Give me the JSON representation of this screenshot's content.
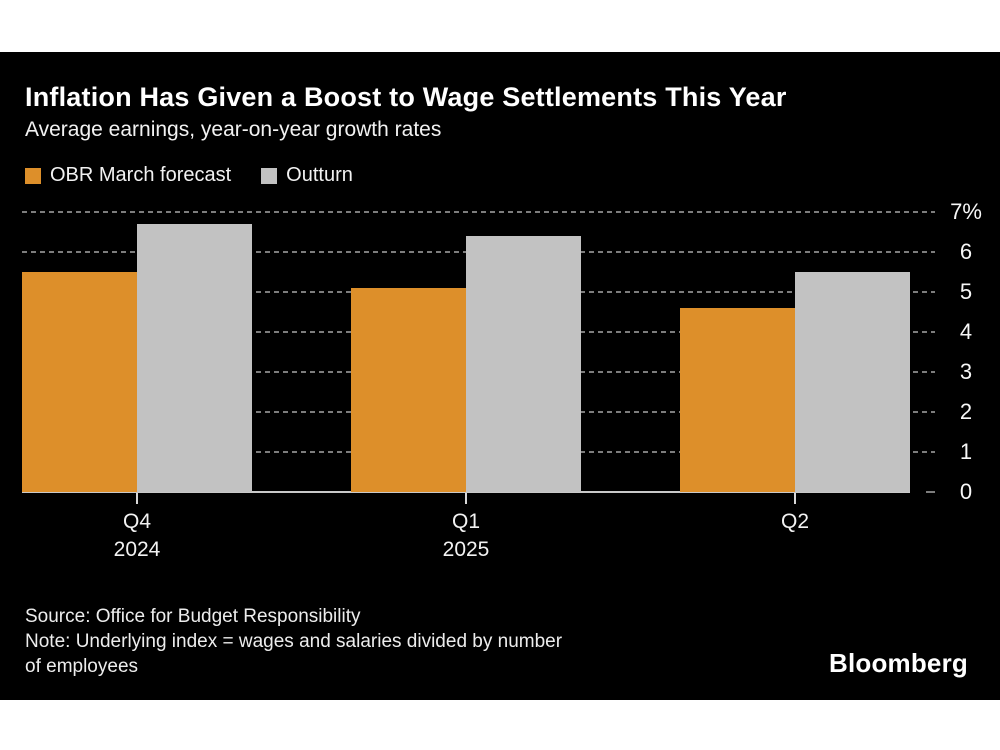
{
  "header": {
    "title": "Inflation Has Given a Boost to Wage Settlements This Year",
    "subtitle": "Average earnings, year-on-year growth rates"
  },
  "chart_data": {
    "type": "bar",
    "title": "Inflation Has Given a Boost to Wage Settlements This Year",
    "subtitle": "Average earnings, year-on-year growth rates",
    "categories": [
      "Q4 2024",
      "Q1 2025",
      "Q2"
    ],
    "category_lines": [
      [
        "Q4",
        "2024"
      ],
      [
        "Q1",
        "2025"
      ],
      [
        "Q2"
      ]
    ],
    "series": [
      {
        "name": "OBR March forecast",
        "color": "#dd8f2a",
        "values": [
          5.5,
          5.1,
          4.6
        ]
      },
      {
        "name": "Outturn",
        "color": "#c2c2c2",
        "values": [
          6.7,
          6.4,
          5.5
        ]
      }
    ],
    "xlabel": "",
    "ylabel": "",
    "ylim": [
      0,
      7
    ],
    "yticks": [
      0,
      1,
      2,
      3,
      4,
      5,
      6,
      7
    ],
    "ytick_labels": [
      "0",
      "1",
      "2",
      "3",
      "4",
      "5",
      "6",
      "7%"
    ],
    "unit": "percent",
    "grid": "horizontal dotted",
    "legend_position": "top-left",
    "value_axis_side": "right"
  },
  "footer": {
    "lines": [
      "Source: Office for Budget Responsibility",
      "Note: Underlying index = wages and salaries divided by number",
      "of employees"
    ],
    "brand": "Bloomberg"
  },
  "colors": {
    "page_background": "#ffffff",
    "card_background": "#000000",
    "title_text": "#ffffff",
    "grid_dots": "#7d7d7d",
    "baseline": "#c9c9c9",
    "forecast_bar": "#dd8f2a",
    "outturn_bar": "#c2c2c2"
  }
}
